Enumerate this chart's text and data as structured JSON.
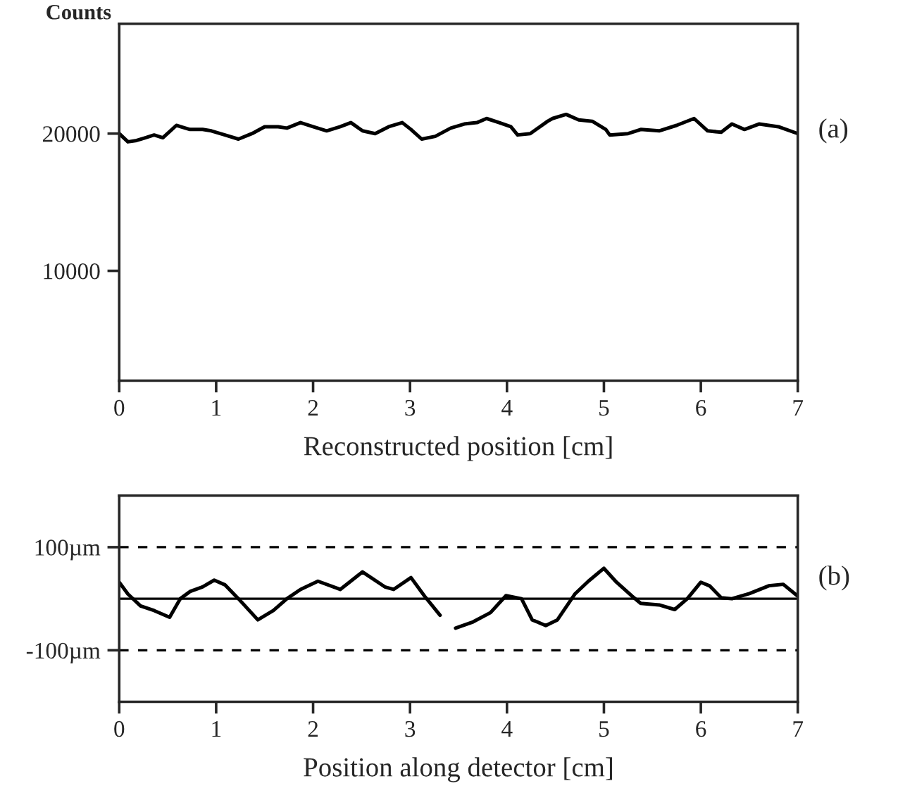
{
  "chart_data": [
    {
      "type": "line",
      "ylabel": "Counts",
      "xlabel": "Reconstructed position [cm]",
      "annotations": [
        "(a)"
      ],
      "xlim": [
        0,
        7
      ],
      "xticks": [
        0,
        1,
        2,
        3,
        4,
        5,
        6,
        7
      ],
      "ylim": [
        2000,
        28000
      ],
      "yticks": [
        10000,
        20000
      ],
      "grid": false,
      "legend": false,
      "series": [
        {
          "color": "#000000",
          "x": [
            0,
            0.09,
            0.18,
            0.27,
            0.36,
            0.45,
            0.59,
            0.73,
            0.86,
            0.95,
            1.09,
            1.23,
            1.37,
            1.5,
            1.64,
            1.73,
            1.87,
            2.0,
            2.14,
            2.28,
            2.39,
            2.51,
            2.64,
            2.78,
            2.92,
            3.01,
            3.12,
            3.26,
            3.42,
            3.56,
            3.69,
            3.79,
            3.92,
            4.04,
            4.11,
            4.24,
            4.42,
            4.47,
            4.61,
            4.74,
            4.88,
            5.02,
            5.06,
            5.25,
            5.38,
            5.57,
            5.75,
            5.93,
            6.07,
            6.21,
            6.32,
            6.45,
            6.6,
            6.8,
            7.0
          ],
          "values": [
            20000,
            19400,
            19500,
            19700,
            19900,
            19700,
            20600,
            20300,
            20300,
            20200,
            19900,
            19600,
            20000,
            20500,
            20500,
            20400,
            20800,
            20500,
            20200,
            20500,
            20800,
            20200,
            20000,
            20500,
            20800,
            20300,
            19600,
            19800,
            20400,
            20700,
            20800,
            21100,
            20800,
            20500,
            19900,
            20000,
            20900,
            21100,
            21400,
            21000,
            20900,
            20300,
            19900,
            20000,
            20300,
            20200,
            20600,
            21100,
            20200,
            20100,
            20700,
            20300,
            20700,
            20500,
            20000
          ]
        }
      ]
    },
    {
      "type": "line",
      "xlabel": "Position along detector [cm]",
      "annotations": [
        "(b)"
      ],
      "xlim": [
        0,
        7
      ],
      "xticks": [
        0,
        1,
        2,
        3,
        4,
        5,
        6,
        7
      ],
      "ylim": [
        -200,
        200
      ],
      "yticks": [
        {
          "value": 100,
          "label": "100µm"
        },
        {
          "value": -100,
          "label": "-100µm"
        }
      ],
      "grid": false,
      "legend": false,
      "ref_lines": [
        {
          "axis": "y",
          "value": 100,
          "line_style": "dashed"
        },
        {
          "axis": "y",
          "value": -100,
          "line_style": "dashed"
        },
        {
          "axis": "y",
          "value": 0,
          "line_style": "solid"
        }
      ],
      "series": [
        {
          "color": "#000000",
          "x": [
            0,
            0.09,
            0.22,
            0.36,
            0.52,
            0.63,
            0.73,
            0.86,
            0.98,
            1.09,
            1.23,
            1.43,
            1.59,
            1.73,
            1.87,
            2.05,
            2.28,
            2.51,
            2.74,
            2.83,
            3.01,
            3.15,
            3.31,
            3.4,
            3.47,
            3.65,
            3.83,
            3.99,
            4.15,
            4.26,
            4.4,
            4.52,
            4.7,
            4.84,
            5.0,
            5.13,
            5.29,
            5.38,
            5.57,
            5.73,
            5.86,
            6.0,
            6.09,
            6.21,
            6.32,
            6.5,
            6.7,
            6.85,
            7.0
          ],
          "values": [
            32,
            9,
            -14,
            -23,
            -36,
            0,
            14,
            23,
            36,
            27,
            0,
            -41,
            -23,
            0,
            18,
            34,
            18,
            52,
            23,
            18,
            41,
            5,
            -32,
            null,
            -57,
            -45,
            -27,
            6,
            0,
            -41,
            -52,
            -41,
            9,
            34,
            59,
            32,
            5,
            -9,
            -12,
            -21,
            0,
            32,
            25,
            2,
            0,
            10,
            25,
            28,
            5
          ]
        }
      ]
    }
  ]
}
